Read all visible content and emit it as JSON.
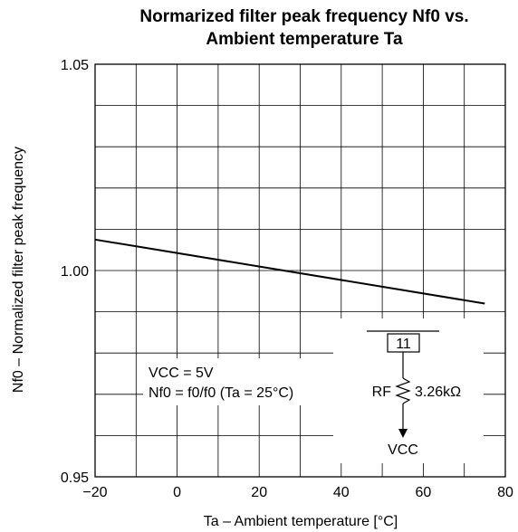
{
  "chart_data": {
    "type": "line",
    "title_line1": "Normarized filter peak frequency Nf0 vs.",
    "title_line2": "Ambient temperature Ta",
    "xlabel": "Ta – Ambient temperature [°C]",
    "ylabel": "Nf0 – Normalized filter peak frequency",
    "xlim": [
      -20,
      80
    ],
    "ylim": [
      0.95,
      1.05
    ],
    "x_ticks": [
      -20,
      0,
      20,
      40,
      60,
      80
    ],
    "x_tick_labels": [
      "−20",
      "0",
      "20",
      "40",
      "60",
      "80"
    ],
    "y_ticks": [
      0.95,
      1.0,
      1.05
    ],
    "y_tick_labels": [
      "0.95",
      "1.00",
      "1.05"
    ],
    "x_grid_step": 10,
    "y_grid_step": 0.01,
    "grid": true,
    "series": [
      {
        "x": [
          -20,
          75
        ],
        "y": [
          1.0075,
          0.992
        ]
      }
    ],
    "annotations": {
      "condition1": "VCC = 5V",
      "condition2": "Nf0 = f0/f0 (Ta = 25°C)",
      "pin": "11",
      "resistor": "RF",
      "resistor_value": "3.26kΩ",
      "supply": "VCC"
    }
  }
}
